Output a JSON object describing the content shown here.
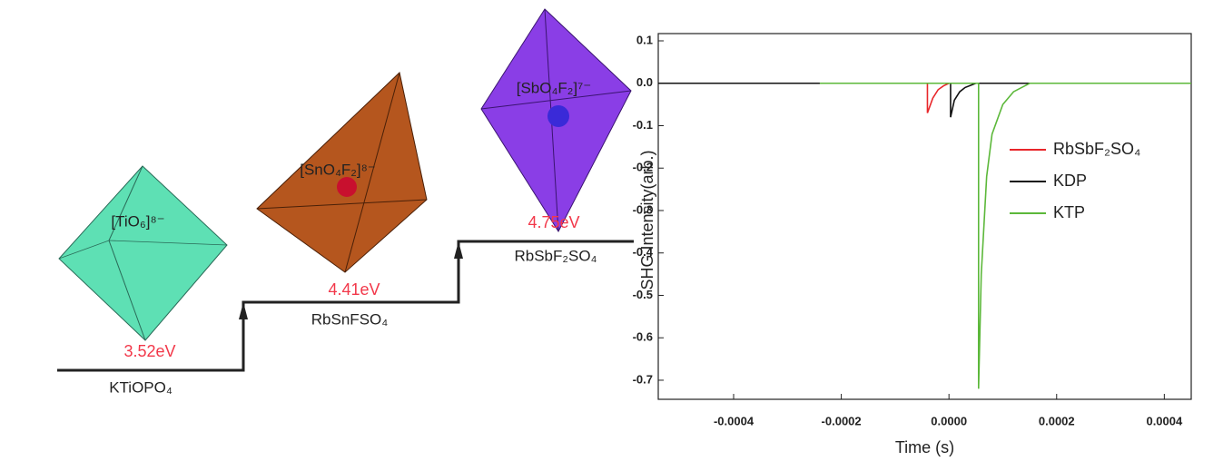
{
  "diagram": {
    "units": [
      {
        "ion": "[TiO₆]⁸⁻",
        "gap": "3.52eV",
        "crystal": "KTiOPO₄"
      },
      {
        "ion": "[SnO₄F₂]⁸⁻",
        "gap": "4.41eV",
        "crystal": "RbSnFSO₄"
      },
      {
        "ion": "[SbO₄F₂]⁷⁻",
        "gap": "4.75eV",
        "crystal": "RbSbF₂SO₄"
      }
    ]
  },
  "chart_data": {
    "type": "line",
    "xlabel": "Time (s)",
    "ylabel": "SHG Intensity(arb.)",
    "xlim": [
      -0.00054,
      0.00045
    ],
    "ylim": [
      -0.745,
      0.1
    ],
    "xticks": [
      -0.0004,
      -0.0002,
      {
        "value": 0,
        "label": "0.0000"
      },
      0.0002,
      0.0004
    ],
    "yticks": [
      0.1,
      {
        "value": 0,
        "label": "0.0"
      },
      -0.1,
      -0.2,
      -0.3,
      -0.4,
      -0.5,
      -0.6,
      -0.7
    ],
    "legend": "center right",
    "series": [
      {
        "name": "RbSbF₂SO₄",
        "color": "#e8262a",
        "x": [
          -0.00054,
          -4e-05,
          -4e-05,
          -3e-05,
          -2e-05,
          -1e-05,
          0,
          0.00045
        ],
        "values": [
          0,
          0,
          -0.07,
          -0.035,
          -0.015,
          -0.006,
          0,
          0
        ]
      },
      {
        "name": "KDP",
        "color": "#111111",
        "x": [
          -0.00054,
          3e-06,
          3e-06,
          1e-05,
          2e-05,
          3e-05,
          5e-05,
          0.00045
        ],
        "values": [
          0,
          0,
          -0.08,
          -0.04,
          -0.02,
          -0.01,
          0,
          0
        ]
      },
      {
        "name": "KTP",
        "color": "#5cb83a",
        "x": [
          -0.00024,
          5.5e-05,
          5.5e-05,
          6e-05,
          7e-05,
          8e-05,
          0.0001,
          0.00012,
          0.00015,
          0.00045
        ],
        "values": [
          0,
          0,
          -0.72,
          -0.45,
          -0.22,
          -0.12,
          -0.05,
          -0.02,
          0,
          0
        ]
      }
    ]
  }
}
